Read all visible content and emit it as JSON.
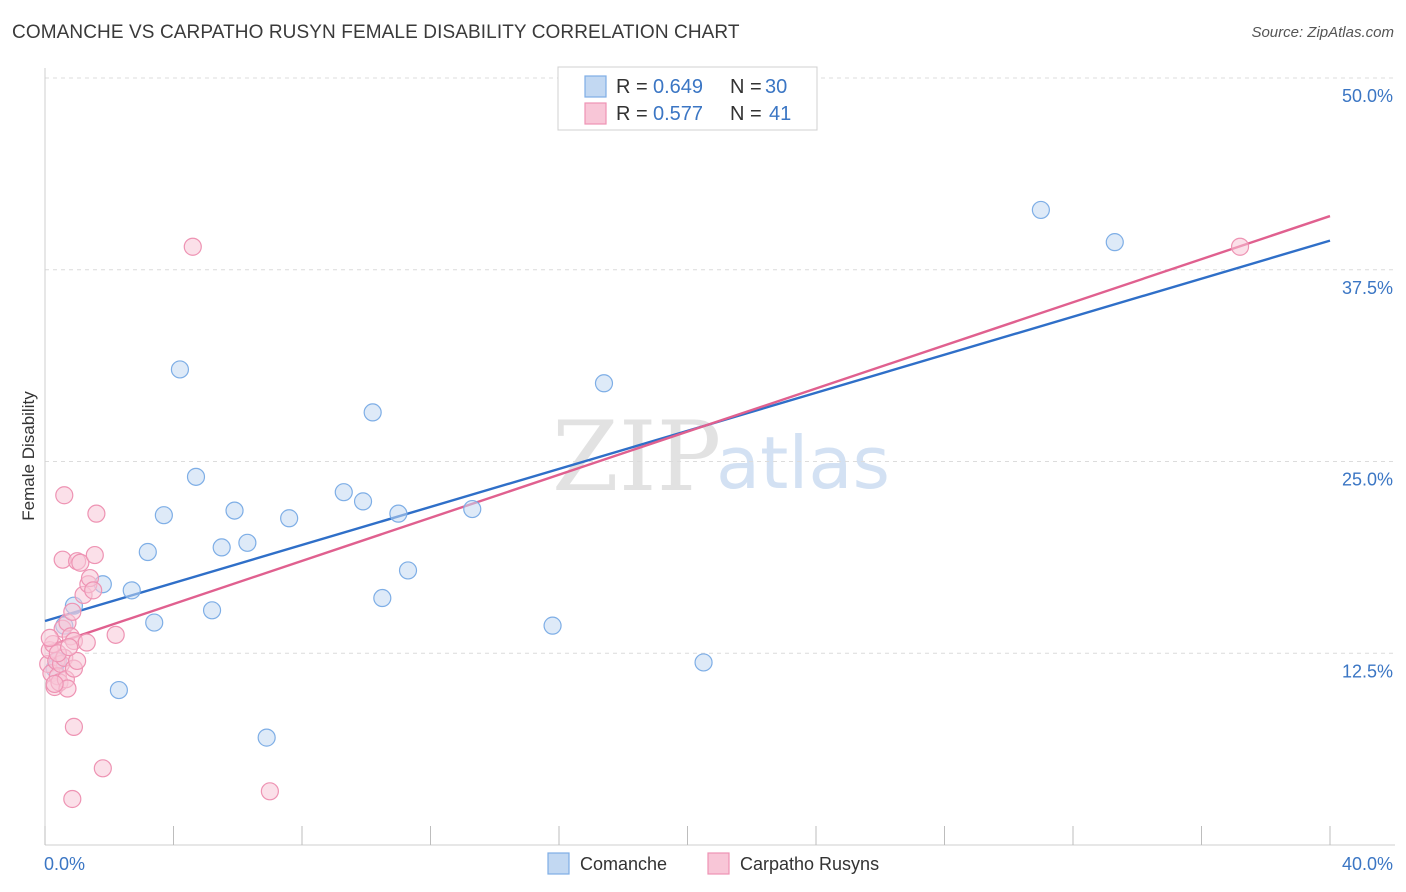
{
  "header": {
    "title": "COMANCHE VS CARPATHO RUSYN FEMALE DISABILITY CORRELATION CHART",
    "source": "Source: ZipAtlas.com"
  },
  "watermark": {
    "part1": "ZIP",
    "part2": "atlas"
  },
  "legend": {
    "rows": [
      {
        "r_label": "R = ",
        "r_value": "0.649",
        "n_label": "N = ",
        "n_value": "30"
      },
      {
        "r_label": "R = ",
        "r_value": "0.577",
        "n_label": "N = ",
        "n_value": "41"
      }
    ]
  },
  "chart_data": {
    "type": "scatter",
    "title": "COMANCHE VS CARPATHO RUSYN FEMALE DISABILITY CORRELATION CHART",
    "xlabel": "",
    "ylabel": "Female Disability",
    "xlim": [
      0,
      40
    ],
    "ylim": [
      0,
      50
    ],
    "x_tick_labels": [
      "0.0%",
      "40.0%"
    ],
    "x_tick_positions": [
      0,
      4,
      8,
      12,
      16,
      20,
      24,
      28,
      32,
      36,
      40
    ],
    "y_ticks": [
      {
        "value": 12.5,
        "label": "12.5%"
      },
      {
        "value": 25.0,
        "label": "25.0%"
      },
      {
        "value": 37.5,
        "label": "37.5%"
      },
      {
        "value": 50.0,
        "label": "50.0%"
      }
    ],
    "series": [
      {
        "name": "Comanche",
        "color": "#7eaee6",
        "fill": "#c2d8f2",
        "line_color": "#2f6fc8",
        "trend": {
          "x0": 0,
          "y0": 14.6,
          "x1": 40,
          "y1": 39.4
        },
        "points": [
          [
            0.4,
            12.0
          ],
          [
            0.6,
            14.3
          ],
          [
            0.9,
            15.6
          ],
          [
            1.8,
            17.0
          ],
          [
            2.3,
            10.1
          ],
          [
            2.7,
            16.6
          ],
          [
            3.2,
            19.1
          ],
          [
            3.4,
            14.5
          ],
          [
            3.7,
            21.5
          ],
          [
            4.2,
            31.0
          ],
          [
            4.7,
            24.0
          ],
          [
            5.2,
            15.3
          ],
          [
            5.5,
            19.4
          ],
          [
            5.9,
            21.8
          ],
          [
            6.3,
            19.7
          ],
          [
            6.9,
            7.0
          ],
          [
            7.6,
            21.3
          ],
          [
            9.3,
            23.0
          ],
          [
            9.9,
            22.4
          ],
          [
            10.2,
            28.2
          ],
          [
            10.5,
            16.1
          ],
          [
            11.0,
            21.6
          ],
          [
            11.3,
            17.9
          ],
          [
            13.3,
            21.9
          ],
          [
            15.8,
            14.3
          ],
          [
            17.4,
            30.1
          ],
          [
            20.5,
            11.9
          ],
          [
            31.0,
            41.4
          ],
          [
            33.3,
            39.3
          ],
          [
            0.3,
            11.5
          ]
        ]
      },
      {
        "name": "Carpatho Rusyns",
        "color": "#ee93b3",
        "fill": "#f8c6d7",
        "line_color": "#e0608f",
        "trend": {
          "x0": 0,
          "y0": 12.9,
          "x1": 40,
          "y1": 41.0
        },
        "points": [
          [
            0.1,
            11.8
          ],
          [
            0.15,
            12.7
          ],
          [
            0.2,
            11.2
          ],
          [
            0.25,
            13.1
          ],
          [
            0.3,
            10.3
          ],
          [
            0.35,
            12.0
          ],
          [
            0.4,
            11.0
          ],
          [
            0.45,
            10.6
          ],
          [
            0.5,
            11.8
          ],
          [
            0.55,
            14.1
          ],
          [
            0.6,
            12.2
          ],
          [
            0.65,
            10.8
          ],
          [
            0.7,
            10.2
          ],
          [
            0.7,
            14.5
          ],
          [
            0.8,
            13.6
          ],
          [
            0.85,
            15.2
          ],
          [
            0.9,
            13.3
          ],
          [
            0.9,
            11.5
          ],
          [
            0.9,
            7.7
          ],
          [
            0.6,
            22.8
          ],
          [
            0.55,
            18.6
          ],
          [
            0.85,
            3.0
          ],
          [
            1.0,
            18.5
          ],
          [
            1.1,
            18.4
          ],
          [
            1.2,
            16.3
          ],
          [
            1.3,
            13.2
          ],
          [
            1.35,
            17.0
          ],
          [
            1.4,
            17.4
          ],
          [
            1.5,
            16.6
          ],
          [
            1.55,
            18.9
          ],
          [
            1.6,
            21.6
          ],
          [
            1.8,
            5.0
          ],
          [
            2.2,
            13.7
          ],
          [
            4.6,
            39.0
          ],
          [
            7.0,
            3.5
          ],
          [
            37.2,
            39.0
          ],
          [
            0.3,
            10.5
          ],
          [
            0.15,
            13.5
          ],
          [
            0.4,
            12.5
          ],
          [
            1.0,
            12.0
          ],
          [
            0.75,
            12.9
          ]
        ]
      }
    ]
  }
}
